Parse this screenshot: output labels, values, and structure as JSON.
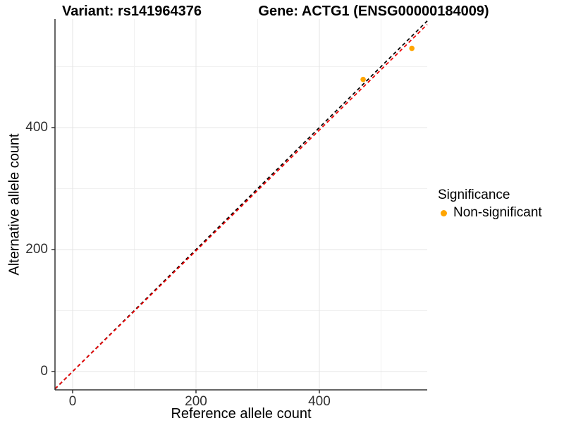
{
  "chart_data": {
    "type": "scatter",
    "title_left": "Variant: rs141964376",
    "title_right": "Gene: ACTG1 (ENSG00000184009)",
    "xlabel": "Reference allele count",
    "ylabel": "Alternative allele count",
    "xlim": [
      -28.6,
      574.9
    ],
    "ylim": [
      -30.1,
      578.0
    ],
    "x_major_ticks": [
      0,
      200,
      400
    ],
    "y_major_ticks": [
      0,
      200,
      400
    ],
    "x_minor_ticks": [
      100,
      300,
      500
    ],
    "y_minor_ticks": [
      100,
      300,
      500
    ],
    "grid": true,
    "points": [
      {
        "x": 471,
        "y": 479,
        "series": "Non-significant"
      },
      {
        "x": 550,
        "y": 530,
        "series": "Non-significant"
      }
    ],
    "lines": [
      {
        "name": "identity-line",
        "slope": 1.0,
        "intercept": 0,
        "color": "#000000",
        "style": "dashed"
      },
      {
        "name": "fitted-line",
        "slope": 0.99,
        "intercept": 0,
        "color": "#EE0000",
        "style": "dashed"
      }
    ],
    "legend": {
      "title": "Significance",
      "position": "right",
      "items": [
        {
          "label": "Non-significant",
          "color": "#FFA500"
        }
      ]
    },
    "colors": {
      "point": "#FFA500",
      "grid_major": "#E4E4E4",
      "grid_minor": "#F1F1F1",
      "axis_line": "#333333",
      "tick_mark": "#333333",
      "background": "#FFFFFF"
    },
    "point_radius": 3.8
  }
}
